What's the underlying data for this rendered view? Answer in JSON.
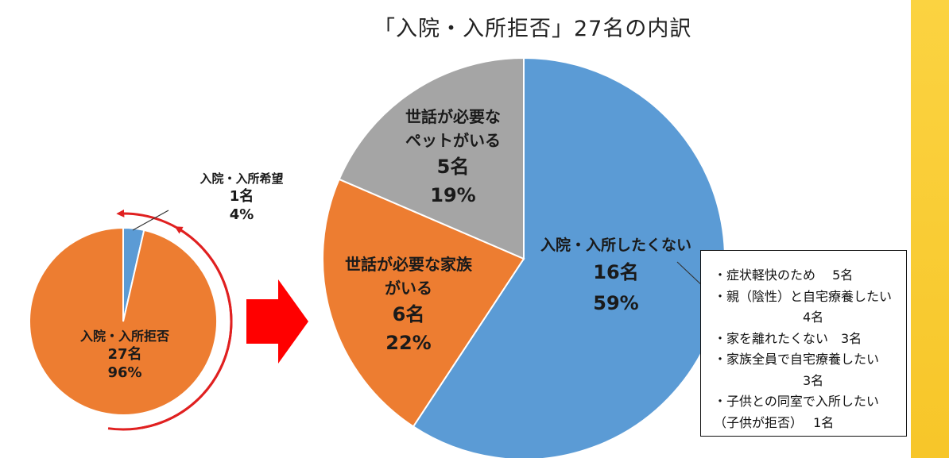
{
  "title": "「入院・入所拒否」27名の内訳",
  "small_pie": {
    "slices": [
      {
        "label": "入院・入所拒否",
        "count": "27名",
        "percent": "96%",
        "color": "#ed7d31"
      },
      {
        "label": "入院・入所希望",
        "count": "1名",
        "percent": "4%",
        "color": "#5b9bd5"
      }
    ]
  },
  "chart_data": [
    {
      "type": "pie",
      "title": "",
      "categories": [
        "入院・入所拒否",
        "入院・入所希望"
      ],
      "values": [
        27,
        1
      ],
      "percents": [
        96,
        4
      ],
      "colors": [
        "#ed7d31",
        "#5b9bd5"
      ]
    },
    {
      "type": "pie",
      "title": "「入院・入所拒否」27名の内訳",
      "categories": [
        "入院・入所したくない",
        "世話が必要な家族がいる",
        "世話が必要なペットがいる"
      ],
      "values": [
        16,
        6,
        5
      ],
      "percents": [
        59,
        22,
        19
      ],
      "colors": [
        "#5b9bd5",
        "#ed7d31",
        "#a5a5a5"
      ]
    }
  ],
  "big_pie": {
    "slices": [
      {
        "label_lines": [
          "入院・入所したくない"
        ],
        "count": "16名",
        "percent": "59%"
      },
      {
        "label_lines": [
          "世話が必要な家族",
          "がいる"
        ],
        "count": "6名",
        "percent": "22%"
      },
      {
        "label_lines": [
          "世話が必要な",
          "ペットがいる"
        ],
        "count": "5名",
        "percent": "19%"
      }
    ]
  },
  "breakdown": {
    "lines": [
      "・症状軽快のため　 5名",
      "・親（陰性）と自宅療養したい",
      "　　　　　　　4名",
      "・家を離れたくない　3名",
      "・家族全員で自宅療養したい",
      "　　　　　　　3名",
      "・子供との同室で入所したい",
      "（子供が拒否）　 1名"
    ]
  },
  "colors": {
    "blue": "#5b9bd5",
    "orange": "#ed7d31",
    "gray": "#a5a5a5",
    "arrow_red": "#ff0000",
    "circle_red": "#e02020",
    "yellow_bar": "#f9cc35"
  }
}
